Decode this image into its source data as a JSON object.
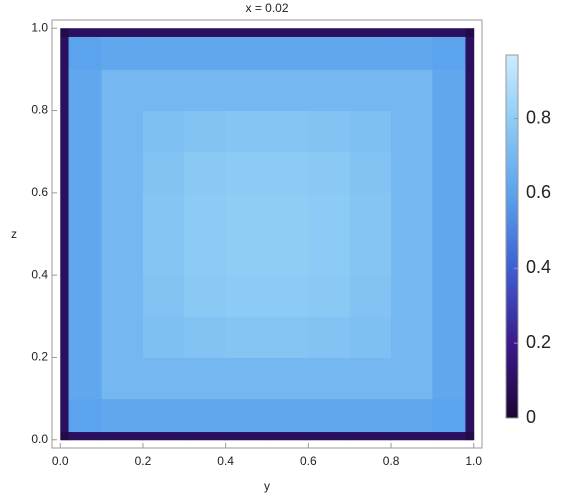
{
  "chart_data": {
    "type": "heatmap",
    "title": "x = 0.02",
    "xlabel": "y",
    "ylabel": "z",
    "x_edges": [
      0,
      0.02,
      0.1,
      0.2,
      0.3,
      0.4,
      0.5,
      0.6,
      0.7,
      0.8,
      0.9,
      0.98,
      1
    ],
    "y_edges": [
      0,
      0.02,
      0.1,
      0.2,
      0.3,
      0.4,
      0.5,
      0.6,
      0.7,
      0.8,
      0.9,
      0.98,
      1
    ],
    "z": [
      [
        0.05,
        0.1,
        0.1,
        0.1,
        0.1,
        0.1,
        0.1,
        0.1,
        0.1,
        0.1,
        0.1,
        0.05
      ],
      [
        0.1,
        0.6,
        0.62,
        0.62,
        0.62,
        0.62,
        0.62,
        0.62,
        0.62,
        0.62,
        0.6,
        0.1
      ],
      [
        0.1,
        0.62,
        0.7,
        0.7,
        0.7,
        0.7,
        0.7,
        0.7,
        0.7,
        0.7,
        0.62,
        0.1
      ],
      [
        0.1,
        0.62,
        0.7,
        0.74,
        0.75,
        0.76,
        0.76,
        0.75,
        0.74,
        0.7,
        0.62,
        0.1
      ],
      [
        0.1,
        0.62,
        0.7,
        0.75,
        0.78,
        0.79,
        0.79,
        0.78,
        0.75,
        0.7,
        0.62,
        0.1
      ],
      [
        0.1,
        0.62,
        0.7,
        0.76,
        0.79,
        0.8,
        0.8,
        0.79,
        0.76,
        0.7,
        0.62,
        0.1
      ],
      [
        0.1,
        0.62,
        0.7,
        0.76,
        0.79,
        0.8,
        0.8,
        0.79,
        0.76,
        0.7,
        0.62,
        0.1
      ],
      [
        0.1,
        0.62,
        0.7,
        0.75,
        0.78,
        0.79,
        0.79,
        0.78,
        0.75,
        0.7,
        0.62,
        0.1
      ],
      [
        0.1,
        0.62,
        0.7,
        0.74,
        0.75,
        0.76,
        0.76,
        0.75,
        0.74,
        0.7,
        0.62,
        0.1
      ],
      [
        0.1,
        0.62,
        0.7,
        0.7,
        0.7,
        0.7,
        0.7,
        0.7,
        0.7,
        0.7,
        0.62,
        0.1
      ],
      [
        0.1,
        0.6,
        0.62,
        0.62,
        0.62,
        0.62,
        0.62,
        0.62,
        0.62,
        0.62,
        0.6,
        0.1
      ],
      [
        0.05,
        0.1,
        0.1,
        0.1,
        0.1,
        0.1,
        0.1,
        0.1,
        0.1,
        0.1,
        0.1,
        0.05
      ]
    ],
    "xlim": [
      -0.02,
      1.02
    ],
    "ylim": [
      -0.02,
      1.02
    ],
    "xticks": [
      {
        "value": 0,
        "label": "0.0"
      },
      0.2,
      0.4,
      0.6,
      0.8,
      {
        "value": 1,
        "label": "1.0"
      }
    ],
    "yticks": [
      {
        "value": 0,
        "label": "0.0"
      },
      0.2,
      0.4,
      0.6,
      0.8,
      {
        "value": 1,
        "label": "1.0"
      }
    ],
    "colormap": [
      {
        "value": 0,
        "color": "#1b0633"
      },
      {
        "value": 0.2,
        "color": "#3b1a8c"
      },
      {
        "value": 0.4,
        "color": "#3f5fd2"
      },
      {
        "value": 0.6,
        "color": "#5ba3ec"
      },
      {
        "value": 0.8,
        "color": "#8fcdf5"
      },
      {
        "value": 1,
        "color": "#cdebff"
      }
    ],
    "colorbar_lim": [
      0,
      0.97
    ],
    "colorbar_ticks": [
      0,
      0.2,
      0.4,
      0.6,
      0.8
    ]
  }
}
